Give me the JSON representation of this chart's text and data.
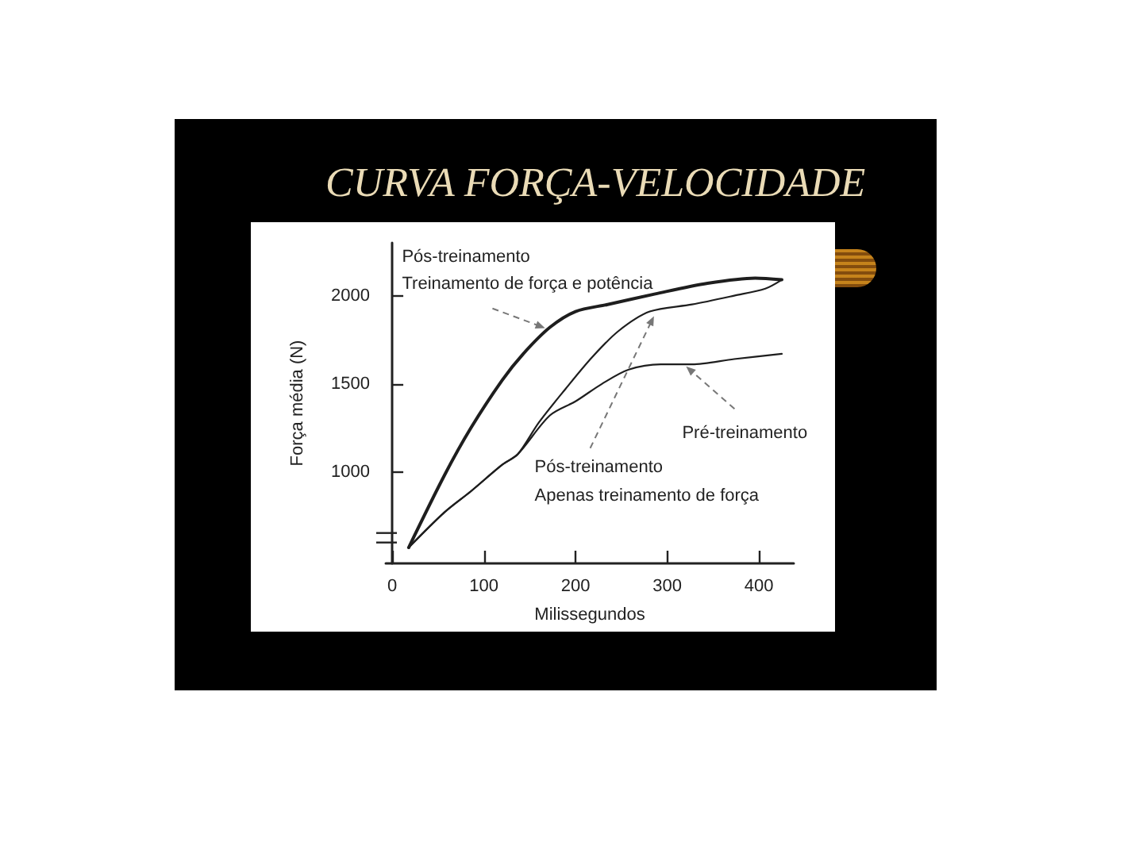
{
  "chart_data": {
    "type": "line",
    "title": "CURVA FORÇA-VELOCIDADE",
    "xlabel": "Milissegundos",
    "ylabel": "Força média (N)",
    "xlim": [
      -7,
      438
    ],
    "ylim": [
      480,
      2300
    ],
    "xticks": [
      0,
      100,
      200,
      300,
      400
    ],
    "yticks": [
      1000,
      1500,
      2000
    ],
    "grid": false,
    "marker": "none",
    "line_style": "solid",
    "series": [
      {
        "color": "#1e1e1e",
        "x": [
          18,
          57,
          86,
          120,
          143,
          172,
          200,
          235,
          287,
          344,
          396,
          425
        ],
        "values": [
          570,
          980,
          1250,
          1520,
          1670,
          1820,
          1910,
          1950,
          2010,
          2070,
          2100,
          2090
        ]
      },
      {
        "color": "#1e1e1e",
        "x": [
          18,
          57,
          86,
          120,
          137,
          160,
          189,
          218,
          247,
          281,
          327,
          373,
          407,
          425
        ],
        "values": [
          570,
          770,
          890,
          1040,
          1100,
          1280,
          1470,
          1650,
          1800,
          1910,
          1950,
          2000,
          2040,
          2090
        ]
      },
      {
        "color": "#1e1e1e",
        "x": [
          18,
          57,
          86,
          120,
          137,
          172,
          200,
          229,
          258,
          293,
          327,
          373,
          425
        ],
        "values": [
          570,
          770,
          890,
          1040,
          1100,
          1320,
          1400,
          1500,
          1580,
          1610,
          1610,
          1640,
          1670
        ]
      }
    ],
    "annotations": [
      {
        "text": "Pós-treinamento\nTreinamento de força e potência",
        "x": 170,
        "y": 1810
      },
      {
        "text": "Pré-treinamento",
        "x": 318,
        "y": 1610
      },
      {
        "text": "Pós-treinamento\nApenas treinamento de força",
        "x": 287,
        "y": 1900
      }
    ]
  }
}
